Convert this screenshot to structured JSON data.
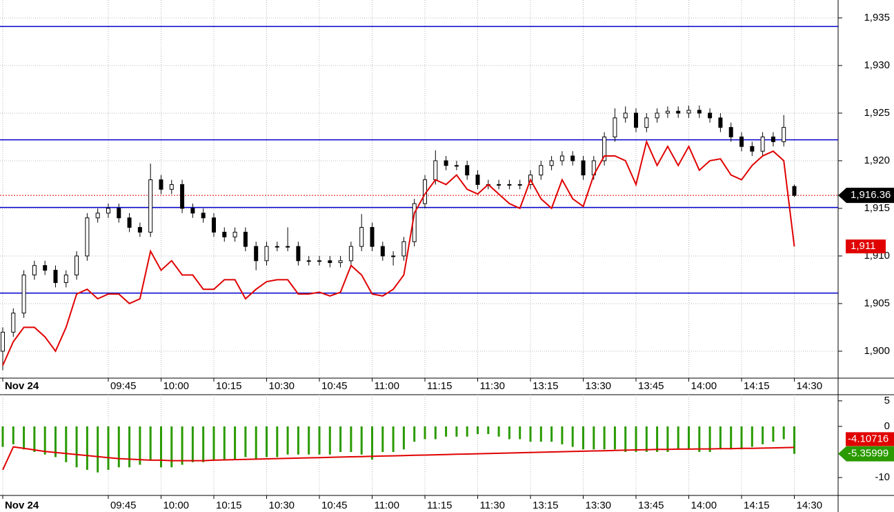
{
  "chart_data": [
    {
      "type": "candlestick",
      "xlim": [
        -0.26,
        79.15
      ],
      "xticks": [
        {
          "value": 0,
          "label": "Nov 24"
        },
        {
          "value": 10,
          "label": "09:45"
        },
        {
          "value": 15,
          "label": "10:00"
        },
        {
          "value": 20,
          "label": "10:15"
        },
        {
          "value": 25,
          "label": "10:30"
        },
        {
          "value": 30,
          "label": "10:45"
        },
        {
          "value": 35,
          "label": "11:00"
        },
        {
          "value": 40,
          "label": "11:15"
        },
        {
          "value": 45,
          "label": "11:30"
        },
        {
          "value": 50,
          "label": "13:15"
        },
        {
          "value": 55,
          "label": "13:30"
        },
        {
          "value": 60,
          "label": "13:45"
        },
        {
          "value": 65,
          "label": "14:00"
        },
        {
          "value": 70,
          "label": "14:15"
        },
        {
          "value": 75,
          "label": "14:30"
        }
      ],
      "ylim": [
        1897.17,
        1936.88
      ],
      "yticks": [
        {
          "value": 1900,
          "label": "1,900"
        },
        {
          "value": 1905,
          "label": "1,905"
        },
        {
          "value": 1910,
          "label": "1,910"
        },
        {
          "value": 1915,
          "label": "1,915"
        },
        {
          "value": 1920,
          "label": "1,920"
        },
        {
          "value": 1925,
          "label": "1,925"
        },
        {
          "value": 1930,
          "label": "1,930"
        },
        {
          "value": 1935,
          "label": "1,935"
        }
      ],
      "grid": true,
      "open": [
        1900,
        1902,
        1904,
        1908,
        1909,
        1908.5,
        1907.2,
        1908,
        1910,
        1914,
        1914.5,
        1915,
        1914,
        1913,
        1912.5,
        1918,
        1917,
        1917.5,
        1915,
        1914.5,
        1914,
        1912.5,
        1912,
        1912.5,
        1911,
        1909.5,
        1911,
        1911,
        1911,
        1909.5,
        1909.5,
        1909.5,
        1909.3,
        1909.5,
        1911,
        1913,
        1911,
        1910,
        1910,
        1911.5,
        1915.5,
        1918,
        1920,
        1919.5,
        1919.5,
        1918.5,
        1917.5,
        1917.5,
        1917.5,
        1917.5,
        1917.5,
        1918.5,
        1919.5,
        1920,
        1920.5,
        1920,
        1918.5,
        1920,
        1922.5,
        1924.5,
        1925,
        1923.5,
        1924.5,
        1925,
        1925.2,
        1925,
        1925.3,
        1925,
        1924.5,
        1923.5,
        1922.5,
        1921.5,
        1921,
        1922.5,
        1922,
        1917.3
      ],
      "high": [
        1902.5,
        1904.5,
        1908.5,
        1909.5,
        1909.5,
        1909,
        1908.5,
        1910.5,
        1914.5,
        1915,
        1915.5,
        1915.5,
        1914.5,
        1913.5,
        1919.7,
        1918.5,
        1918,
        1918,
        1915.5,
        1915,
        1914.5,
        1913,
        1913,
        1913,
        1911.5,
        1911.5,
        1911.5,
        1913,
        1911.5,
        1910,
        1910,
        1910,
        1910,
        1911.5,
        1914.4,
        1913.5,
        1911.5,
        1910.5,
        1912,
        1916,
        1918.5,
        1921.1,
        1920.5,
        1920,
        1920,
        1919,
        1918,
        1918,
        1918,
        1918,
        1919,
        1920,
        1920.5,
        1921,
        1921,
        1920.5,
        1920.5,
        1923,
        1925.5,
        1925.7,
        1925.5,
        1925,
        1925.5,
        1925.7,
        1925.7,
        1925.8,
        1925.8,
        1925.5,
        1925,
        1924,
        1923,
        1922,
        1923,
        1923,
        1924.8,
        1917.5
      ],
      "low": [
        1898,
        1901.5,
        1903.5,
        1907.5,
        1908,
        1906.7,
        1906.7,
        1907.5,
        1909.5,
        1913.5,
        1914,
        1913.5,
        1912.5,
        1912,
        1912,
        1916.5,
        1916.5,
        1914.5,
        1914,
        1913.5,
        1912,
        1911.5,
        1911.5,
        1910.5,
        1908.5,
        1909,
        1910.5,
        1910.5,
        1909,
        1909,
        1909,
        1908.8,
        1908.8,
        1909,
        1910.5,
        1910.5,
        1909.5,
        1909,
        1909.5,
        1911,
        1915,
        1917.5,
        1919,
        1919,
        1918,
        1917,
        1917,
        1917,
        1917,
        1917,
        1917,
        1918,
        1919,
        1919.5,
        1919.5,
        1918,
        1918,
        1919.5,
        1922,
        1924,
        1923,
        1923,
        1924,
        1924.5,
        1924.5,
        1924.5,
        1924.5,
        1924,
        1923,
        1922,
        1921,
        1920.5,
        1920.5,
        1921.5,
        1921.5,
        1916.2
      ],
      "close": [
        1902,
        1904,
        1908,
        1909,
        1908.5,
        1907.2,
        1908,
        1910,
        1914,
        1914.5,
        1915,
        1914,
        1913,
        1912.5,
        1918,
        1917,
        1917.5,
        1915,
        1914.5,
        1914,
        1912.5,
        1912,
        1912.5,
        1911,
        1909.5,
        1911,
        1911,
        1911,
        1909.5,
        1909.5,
        1909.5,
        1909.3,
        1909.5,
        1911,
        1913,
        1911,
        1910,
        1910,
        1911.5,
        1915.5,
        1918,
        1920,
        1919.5,
        1919.5,
        1918.5,
        1917.5,
        1917.5,
        1917.5,
        1917.5,
        1917.5,
        1918.5,
        1919.5,
        1920,
        1920.5,
        1920,
        1918.5,
        1920,
        1922.5,
        1924.5,
        1925,
        1923.5,
        1924.5,
        1925,
        1925.2,
        1925,
        1925.3,
        1925,
        1924.5,
        1923.5,
        1922.5,
        1921.5,
        1921,
        1922.5,
        1922,
        1923.5,
        1916.36
      ],
      "overlay": {
        "color": "#e00000",
        "values": [
          1898.5,
          1901,
          1902.5,
          1902.5,
          1901.5,
          1900,
          1902.5,
          1906,
          1906.5,
          1905.5,
          1906,
          1906,
          1905,
          1905.5,
          1910.5,
          1908.5,
          1909.5,
          1908,
          1908,
          1906.5,
          1906.5,
          1907.5,
          1907.5,
          1905.5,
          1906.5,
          1907.3,
          1907.5,
          1907.5,
          1906,
          1906,
          1906.2,
          1905.8,
          1906.2,
          1909,
          1908,
          1906,
          1905.8,
          1906.5,
          1908,
          1914.5,
          1916.5,
          1918,
          1917.5,
          1918.5,
          1917,
          1916.5,
          1917.5,
          1916.5,
          1915.5,
          1915,
          1918,
          1916,
          1915,
          1918,
          1916,
          1915.2,
          1918.5,
          1920.5,
          1920.5,
          1920,
          1917.5,
          1922,
          1919.5,
          1921.5,
          1919.5,
          1921.5,
          1919,
          1920,
          1920.2,
          1918.5,
          1918,
          1919.5,
          1920.5,
          1921,
          1920,
          1911
        ]
      },
      "overlay_last": {
        "value": 1911,
        "label": "1,911"
      },
      "last_price": {
        "value": 1916.36,
        "label": "1,916.36"
      },
      "levels": {
        "color": "#0000cc",
        "values": [
          1934.1,
          1922.2,
          1915.1,
          1906.1
        ]
      },
      "candle_colors": {
        "up": "#ffffff",
        "down": "#000000"
      }
    },
    {
      "type": "bar",
      "ylim": [
        -13.5,
        6.2
      ],
      "yticks": [
        -10,
        0,
        5
      ],
      "color": "#2a9a00",
      "values": [
        -4,
        -3.5,
        -4.5,
        -5,
        -5.5,
        -6,
        -7,
        -8,
        -8.5,
        -9,
        -8.5,
        -8,
        -8,
        -7.5,
        -6.5,
        -8,
        -8,
        -7.5,
        -7,
        -7,
        -6.5,
        -6.5,
        -6.5,
        -6,
        -6.5,
        -6,
        -6,
        -5.5,
        -5.5,
        -5.5,
        -5.5,
        -5.5,
        -5,
        -5,
        -5.5,
        -6.5,
        -5,
        -5,
        -4.5,
        -3,
        -2.5,
        -2.5,
        -2,
        -2,
        -2,
        -1.5,
        -1.5,
        -2,
        -2.5,
        -2.5,
        -3,
        -3,
        -3,
        -3.5,
        -4,
        -4.5,
        -4.5,
        -4.5,
        -4.5,
        -5,
        -5,
        -5,
        -5,
        -5,
        -4.5,
        -4.5,
        -5,
        -5,
        -4.5,
        -4.5,
        -4.5,
        -4,
        -3.5,
        -3,
        -2.5,
        -5.35999
      ],
      "signal": {
        "color": "#e00000",
        "values": [
          -8.5,
          -4,
          -4.3,
          -4.6,
          -4.9,
          -5.1,
          -5.3,
          -5.5,
          -5.7,
          -5.9,
          -6.1,
          -6.3,
          -6.4,
          -6.5,
          -6.6,
          -6.6,
          -6.7,
          -6.7,
          -6.7,
          -6.7,
          -6.6,
          -6.55,
          -6.5,
          -6.45,
          -6.4,
          -6.35,
          -6.3,
          -6.25,
          -6.2,
          -6.15,
          -6.1,
          -6.05,
          -6,
          -5.95,
          -5.9,
          -5.85,
          -5.8,
          -5.75,
          -5.7,
          -5.65,
          -5.6,
          -5.55,
          -5.5,
          -5.45,
          -5.4,
          -5.35,
          -5.3,
          -5.25,
          -5.2,
          -5.15,
          -5.1,
          -5.05,
          -5,
          -4.95,
          -4.9,
          -4.85,
          -4.8,
          -4.75,
          -4.7,
          -4.65,
          -4.6,
          -4.55,
          -4.5,
          -4.5,
          -4.45,
          -4.45,
          -4.4,
          -4.4,
          -4.35,
          -4.35,
          -4.3,
          -4.3,
          -4.25,
          -4.2,
          -4.15,
          -4.10716
        ]
      }
    }
  ]
}
